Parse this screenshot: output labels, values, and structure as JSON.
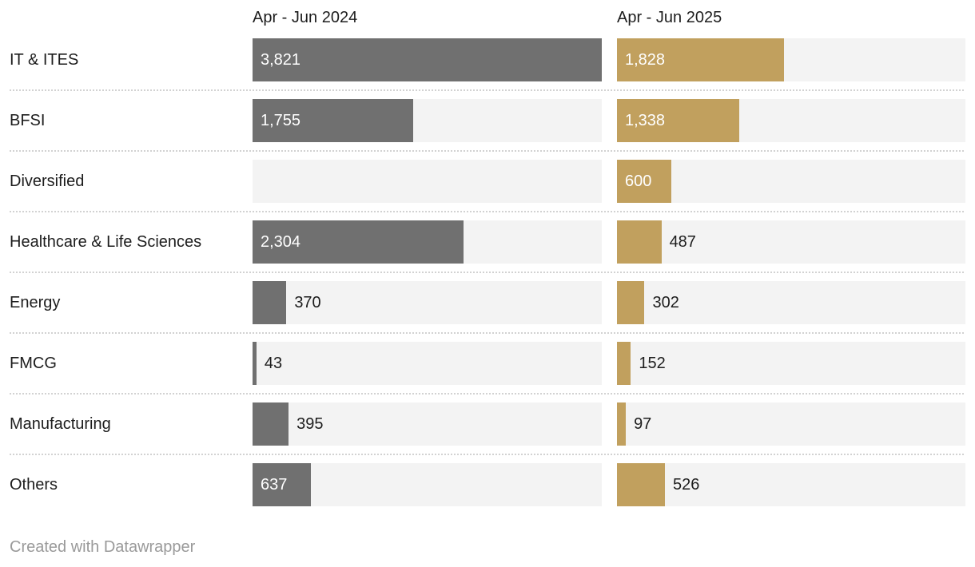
{
  "chart_data": {
    "type": "bar",
    "orientation": "horizontal",
    "layout": "two-column grouped bars, shared scale, value labels on bars, dotted row separators",
    "title": "",
    "categories": [
      "IT & ITES",
      "BFSI",
      "Diversified",
      "Healthcare & Life Sciences",
      "Energy",
      "FMCG",
      "Manufacturing",
      "Others"
    ],
    "series": [
      {
        "name": "Apr - Jun 2024",
        "color": "#707070",
        "values": [
          3821,
          1755,
          null,
          2304,
          370,
          43,
          395,
          637
        ],
        "labels": [
          "3,821",
          "1,755",
          null,
          "2,304",
          "370",
          "43",
          "395",
          "637"
        ]
      },
      {
        "name": "Apr - Jun 2025",
        "color": "#c1a05e",
        "values": [
          1828,
          1338,
          600,
          487,
          302,
          152,
          97,
          526
        ],
        "labels": [
          "1,828",
          "1,338",
          "600",
          "487",
          "302",
          "152",
          "97",
          "526"
        ]
      }
    ],
    "xlim": [
      0,
      3821
    ],
    "grid": false,
    "track_color": "#f3f3f3",
    "separator_color": "#d2d2d2",
    "label_text_color": "#1d1d1d",
    "inside_label_color": "#ffffff"
  },
  "footer": {
    "credit": "Created with Datawrapper"
  }
}
